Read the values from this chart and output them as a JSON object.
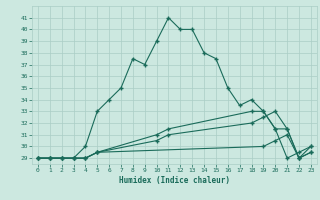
{
  "xlabel": "Humidex (Indice chaleur)",
  "xlim": [
    -0.5,
    23.5
  ],
  "ylim": [
    28.5,
    42
  ],
  "yticks": [
    29,
    30,
    31,
    32,
    33,
    34,
    35,
    36,
    37,
    38,
    39,
    40,
    41
  ],
  "xticks": [
    0,
    1,
    2,
    3,
    4,
    5,
    6,
    7,
    8,
    9,
    10,
    11,
    12,
    13,
    14,
    15,
    16,
    17,
    18,
    19,
    20,
    21,
    22,
    23
  ],
  "bg_color": "#cce8e0",
  "grid_color": "#aacec6",
  "line_color": "#1a6b5a",
  "line1_x": [
    0,
    1,
    2,
    3,
    4,
    5,
    6,
    7,
    8,
    9,
    10,
    11,
    12,
    13,
    14,
    15,
    16,
    17,
    18,
    19,
    20,
    21,
    22,
    23
  ],
  "line1_y": [
    29,
    29,
    29,
    29,
    30,
    33,
    34,
    35,
    37.5,
    37,
    39,
    41,
    40,
    40,
    38,
    37.5,
    35,
    33.5,
    34,
    33,
    31.5,
    29,
    29.5,
    30
  ],
  "line2_x": [
    0,
    1,
    2,
    3,
    4,
    5,
    19,
    20,
    21,
    22,
    23
  ],
  "line2_y": [
    29,
    29,
    29,
    29,
    29,
    29.5,
    30,
    30.5,
    31,
    29,
    29.5
  ],
  "line3_x": [
    0,
    1,
    2,
    3,
    4,
    5,
    10,
    11,
    18,
    19,
    20,
    21,
    22,
    23
  ],
  "line3_y": [
    29,
    29,
    29,
    29,
    29,
    29.5,
    30.5,
    31,
    32,
    32.5,
    33,
    31.5,
    29,
    29.5
  ],
  "line4_x": [
    0,
    1,
    2,
    3,
    4,
    5,
    10,
    11,
    18,
    19,
    20,
    21,
    22,
    23
  ],
  "line4_y": [
    29,
    29,
    29,
    29,
    29,
    29.5,
    31,
    31.5,
    33,
    33,
    31.5,
    31.5,
    29,
    30
  ]
}
